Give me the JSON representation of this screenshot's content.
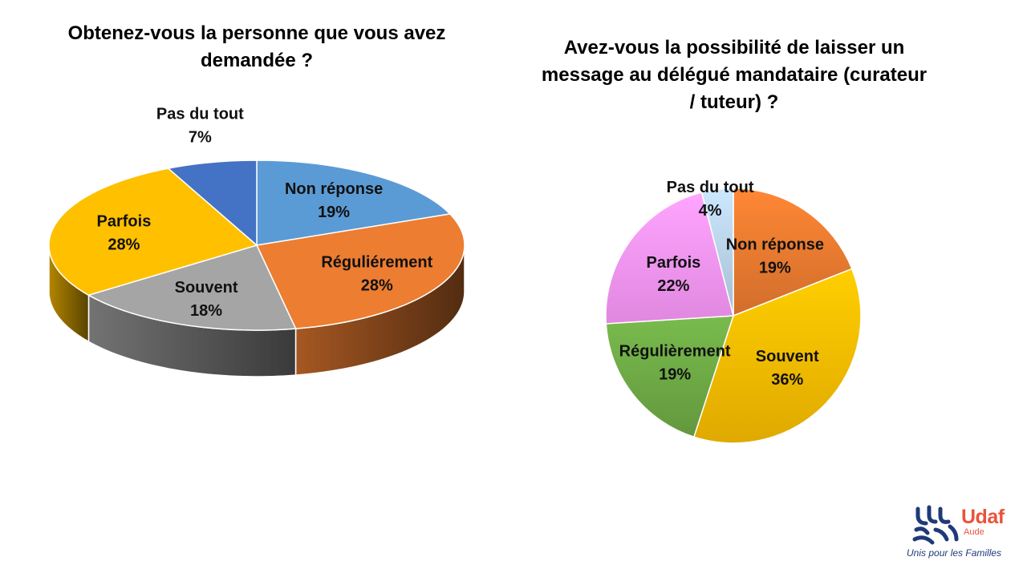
{
  "chart_data": [
    {
      "type": "pie",
      "style": "3d",
      "title": [
        "Obtenez-vous la personne que vous avez",
        "demandée ?"
      ],
      "slices": [
        {
          "label": "Non réponse",
          "value": 19,
          "display": "19%",
          "color": "#5b9bd5"
        },
        {
          "label": "Réguliérement",
          "value": 28,
          "display": "28%",
          "color": "#ed7d31"
        },
        {
          "label": "Souvent",
          "value": 18,
          "display": "18%",
          "color": "#a5a5a5"
        },
        {
          "label": "Parfois",
          "value": 28,
          "display": "28%",
          "color": "#ffc000"
        },
        {
          "label": "Pas du tout",
          "value": 7,
          "display": "7%",
          "color": "#4472c4"
        }
      ]
    },
    {
      "type": "pie",
      "style": "2d",
      "title": [
        "Avez-vous la possibilité de laisser un",
        "message au délégué mandataire (curateur",
        "/ tuteur) ?"
      ],
      "slices": [
        {
          "label": "Non réponse",
          "value": 19,
          "display": "19%",
          "color": "#ed7d31"
        },
        {
          "label": "Souvent",
          "value": 36,
          "display": "36%",
          "color": "#ffc000"
        },
        {
          "label": "Régulièrement",
          "value": 19,
          "display": "19%",
          "color": "#70ad47"
        },
        {
          "label": "Parfois",
          "value": 22,
          "display": "22%",
          "color": "#ff99ff"
        },
        {
          "label": "Pas du tout",
          "value": 4,
          "display": "4%",
          "color": "#bdd7ee"
        }
      ]
    }
  ],
  "logo": {
    "brand": "Udaf",
    "region": "Aude",
    "tagline": "Unis pour les Familles",
    "icon": "udaf-family-logo-icon",
    "brand_color": "#e8543a",
    "mark_color": "#1f3a78"
  }
}
